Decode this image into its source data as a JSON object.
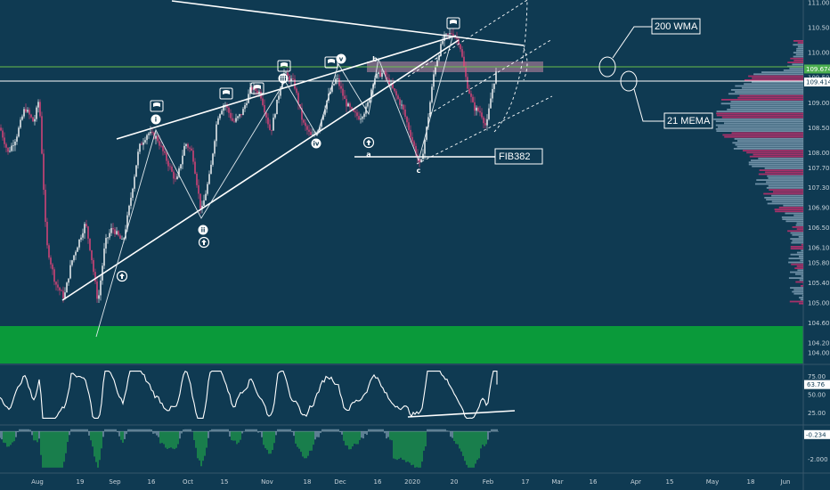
{
  "chart_data": {
    "type": "candlestick",
    "price_axis": {
      "ylim": [
        103.8,
        111.2
      ],
      "ticks": [
        "111.000",
        "110.500",
        "110.000",
        "109.500",
        "109.000",
        "108.500",
        "108.000",
        "107.700",
        "107.300",
        "106.900",
        "106.500",
        "106.100",
        "105.800",
        "105.400",
        "105.000",
        "104.600",
        "104.200",
        "104.000"
      ],
      "tick_values": [
        111.0,
        110.5,
        110.0,
        109.5,
        109.0,
        108.5,
        108.0,
        107.7,
        107.3,
        106.9,
        106.5,
        106.1,
        105.8,
        105.4,
        105.0,
        104.6,
        104.2,
        104.0
      ],
      "price_tags": [
        {
          "label": "109.674",
          "value": 109.674,
          "color": "#4caf50"
        },
        {
          "label": "109.414",
          "value": 109.414,
          "color": "#ffffff"
        }
      ]
    },
    "x_axis_labels": [
      "Aug",
      "19",
      "Sep",
      "16",
      "Oct",
      "15",
      "Nov",
      "18",
      "Dec",
      "16",
      "2020",
      "20",
      "Feb",
      "17",
      "Mar",
      "16",
      "Apr",
      "15",
      "May",
      "18",
      "Jun"
    ],
    "path": [
      [
        0,
        108.5
      ],
      [
        9,
        108.0
      ],
      [
        18,
        108.3
      ],
      [
        28,
        108.9
      ],
      [
        38,
        108.6
      ],
      [
        44,
        109.1
      ],
      [
        52,
        106.2
      ],
      [
        62,
        105.4
      ],
      [
        72,
        105.1
      ],
      [
        80,
        105.8
      ],
      [
        90,
        106.3
      ],
      [
        96,
        106.6
      ],
      [
        102,
        106.0
      ],
      [
        110,
        105.0
      ],
      [
        118,
        106.2
      ],
      [
        126,
        106.5
      ],
      [
        138,
        106.2
      ],
      [
        146,
        107.0
      ],
      [
        156,
        108.1
      ],
      [
        166,
        108.4
      ],
      [
        176,
        108.3
      ],
      [
        186,
        107.9
      ],
      [
        198,
        107.4
      ],
      [
        208,
        108.2
      ],
      [
        216,
        108.0
      ],
      [
        226,
        106.8
      ],
      [
        236,
        107.6
      ],
      [
        244,
        108.7
      ],
      [
        252,
        109.0
      ],
      [
        262,
        108.6
      ],
      [
        272,
        108.8
      ],
      [
        282,
        109.3
      ],
      [
        292,
        109.2
      ],
      [
        304,
        108.4
      ],
      [
        318,
        109.6
      ],
      [
        330,
        109.4
      ],
      [
        340,
        108.6
      ],
      [
        350,
        108.3
      ],
      [
        358,
        108.5
      ],
      [
        368,
        109.1
      ],
      [
        378,
        109.5
      ],
      [
        388,
        109.0
      ],
      [
        396,
        108.8
      ],
      [
        404,
        108.7
      ],
      [
        412,
        108.9
      ],
      [
        420,
        109.5
      ],
      [
        430,
        109.6
      ],
      [
        440,
        109.3
      ],
      [
        452,
        108.9
      ],
      [
        462,
        108.3
      ],
      [
        472,
        107.7
      ],
      [
        480,
        108.6
      ],
      [
        488,
        109.7
      ],
      [
        498,
        110.3
      ],
      [
        508,
        110.4
      ],
      [
        516,
        110.2
      ],
      [
        524,
        109.4
      ],
      [
        532,
        108.9
      ],
      [
        540,
        108.8
      ],
      [
        546,
        108.5
      ],
      [
        552,
        109.2
      ],
      [
        558,
        109.67
      ]
    ],
    "indicators": [
      "200 WMA",
      "21 MEMA"
    ],
    "annotations": [
      "FIB382"
    ],
    "wave_labels": [
      "i",
      "ii",
      "iii",
      "iv",
      "v",
      "a",
      "b",
      "c"
    ],
    "lower_panels": [
      {
        "name": "oscillator",
        "ylim": [
          10,
          90
        ],
        "ticks": [
          "75.00",
          "50.00",
          "25.00"
        ],
        "tick_values": [
          75,
          50,
          25
        ],
        "last_value": 63.76,
        "last_label": "63.76"
      },
      {
        "name": "histogram",
        "ylim": [
          -2.8,
          0.2
        ],
        "ticks": [
          "-2.000"
        ],
        "tick_values": [
          -2.0
        ],
        "last_value": -0.234,
        "last_label": "-0.234"
      }
    ]
  }
}
